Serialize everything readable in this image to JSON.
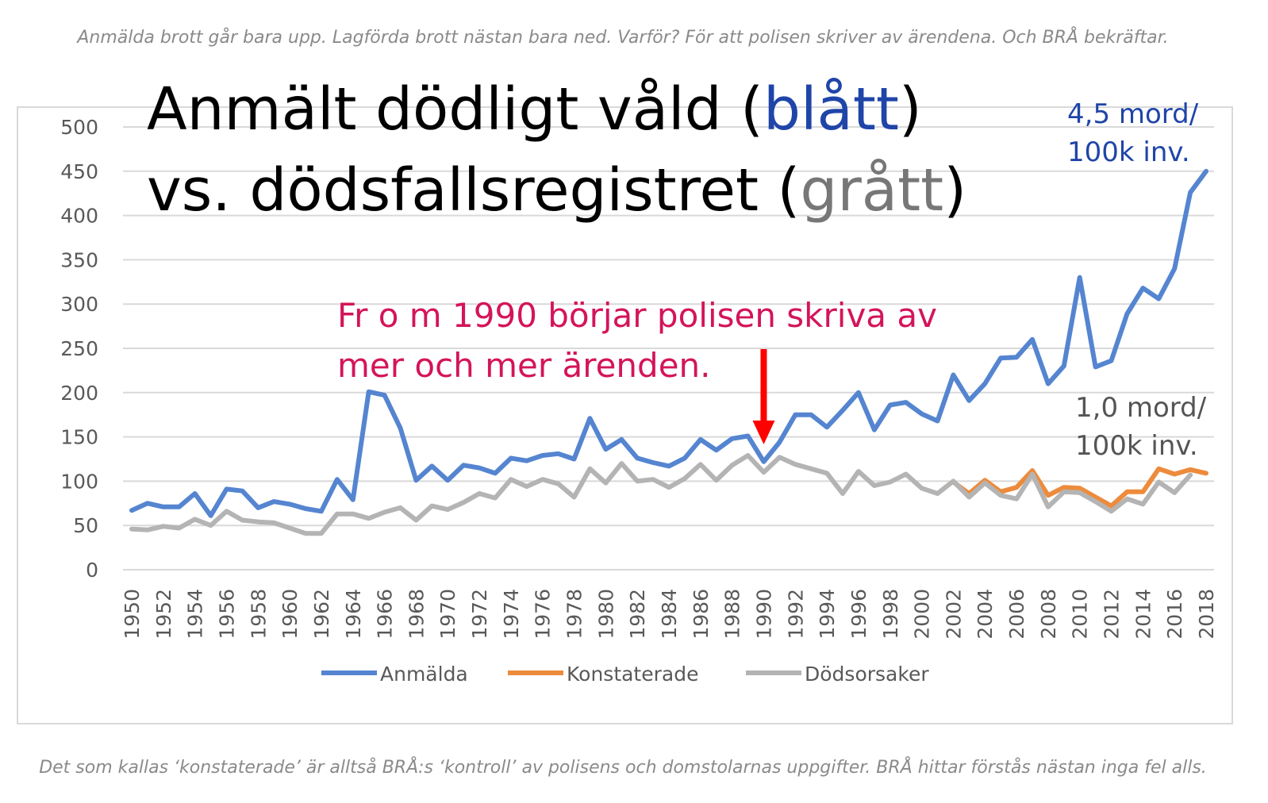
{
  "top_caption": "Anmälda brott går bara upp. Lagförda brott nästan bara ned. Varför? För att polisen skriver av ärendena. Och BRÅ bekräftar.",
  "bottom_caption": "Det som kallas ‘konstaterade’ är alltså BRÅ:s ‘kontroll’ av polisens och domstolarnas uppgifter. BRÅ hittar förstås nästan inga fel alls.",
  "chart_data": {
    "type": "line",
    "title": {
      "line1": [
        "Anmält dödligt våld (",
        "blått",
        ")"
      ],
      "line2": [
        "vs. dödsfallsregistret (",
        "grått",
        ")"
      ],
      "colors": [
        "#000000",
        "#1f45a8",
        "#777777"
      ]
    },
    "annotations": [
      {
        "lines": [
          "Fr o m 1990 börjar polisen skriva av",
          "mer och mer ärenden."
        ],
        "color": "#d4145a",
        "arrow_x": 1990,
        "arrow_color": "#ff0000"
      },
      {
        "lines": [
          "4,5 mord/",
          "100k inv."
        ],
        "color": "#1f45a8"
      },
      {
        "lines": [
          "1,0 mord/",
          "100k inv."
        ],
        "color": "#555555"
      }
    ],
    "x": [
      1950,
      1951,
      1952,
      1953,
      1954,
      1955,
      1956,
      1957,
      1958,
      1959,
      1960,
      1961,
      1962,
      1963,
      1964,
      1965,
      1966,
      1967,
      1968,
      1969,
      1970,
      1971,
      1972,
      1973,
      1974,
      1975,
      1976,
      1977,
      1978,
      1979,
      1980,
      1981,
      1982,
      1983,
      1984,
      1985,
      1986,
      1987,
      1988,
      1989,
      1990,
      1991,
      1992,
      1993,
      1994,
      1995,
      1996,
      1997,
      1998,
      1999,
      2000,
      2001,
      2002,
      2003,
      2004,
      2005,
      2006,
      2007,
      2008,
      2009,
      2010,
      2011,
      2012,
      2013,
      2014,
      2015,
      2016,
      2017,
      2018
    ],
    "series": [
      {
        "name": "Anmälda",
        "color": "#5585d0",
        "values": [
          67,
          75,
          71,
          71,
          86,
          61,
          91,
          89,
          70,
          77,
          74,
          69,
          66,
          102,
          79,
          201,
          197,
          160,
          101,
          117,
          101,
          118,
          115,
          109,
          126,
          123,
          129,
          131,
          125,
          171,
          136,
          147,
          126,
          121,
          117,
          126,
          147,
          135,
          148,
          151,
          122,
          144,
          175,
          175,
          161,
          180,
          200,
          158,
          186,
          189,
          176,
          168,
          220,
          191,
          210,
          239,
          240,
          260,
          210,
          230,
          330,
          229,
          236,
          289,
          318,
          306,
          340,
          426,
          450
        ]
      },
      {
        "name": "Konstaterade",
        "color": "#ed8b3c",
        "values": [
          null,
          null,
          null,
          null,
          null,
          null,
          null,
          null,
          null,
          null,
          null,
          null,
          null,
          null,
          null,
          null,
          null,
          null,
          null,
          null,
          null,
          null,
          null,
          null,
          null,
          null,
          null,
          null,
          null,
          null,
          null,
          null,
          null,
          null,
          null,
          null,
          null,
          null,
          null,
          null,
          null,
          null,
          null,
          null,
          null,
          null,
          null,
          null,
          null,
          null,
          null,
          null,
          99,
          86,
          101,
          88,
          93,
          112,
          84,
          93,
          92,
          82,
          72,
          88,
          88,
          114,
          108,
          113,
          109
        ]
      },
      {
        "name": "Dödsorsaker",
        "color": "#b4b4b4",
        "values": [
          46,
          45,
          49,
          47,
          57,
          50,
          66,
          56,
          54,
          53,
          47,
          41,
          41,
          63,
          63,
          58,
          65,
          70,
          56,
          72,
          68,
          76,
          86,
          81,
          102,
          94,
          102,
          97,
          82,
          114,
          98,
          120,
          100,
          102,
          93,
          103,
          119,
          101,
          118,
          129,
          110,
          127,
          119,
          114,
          109,
          86,
          111,
          95,
          99,
          108,
          92,
          86,
          100,
          82,
          98,
          84,
          80,
          108,
          71,
          88,
          87,
          77,
          66,
          80,
          74,
          99,
          87,
          107,
          null
        ]
      }
    ],
    "xlim": [
      1950,
      2018
    ],
    "xticks": [
      1950,
      1952,
      1954,
      1956,
      1958,
      1960,
      1962,
      1964,
      1966,
      1968,
      1970,
      1972,
      1974,
      1976,
      1978,
      1980,
      1982,
      1984,
      1986,
      1988,
      1990,
      1992,
      1994,
      1996,
      1998,
      2000,
      2002,
      2004,
      2006,
      2008,
      2010,
      2012,
      2014,
      2016,
      2018
    ],
    "ylim": [
      0,
      500
    ],
    "yticks": [
      0,
      50,
      100,
      150,
      200,
      250,
      300,
      350,
      400,
      450,
      500
    ],
    "grid": true,
    "legend": "bottom"
  }
}
